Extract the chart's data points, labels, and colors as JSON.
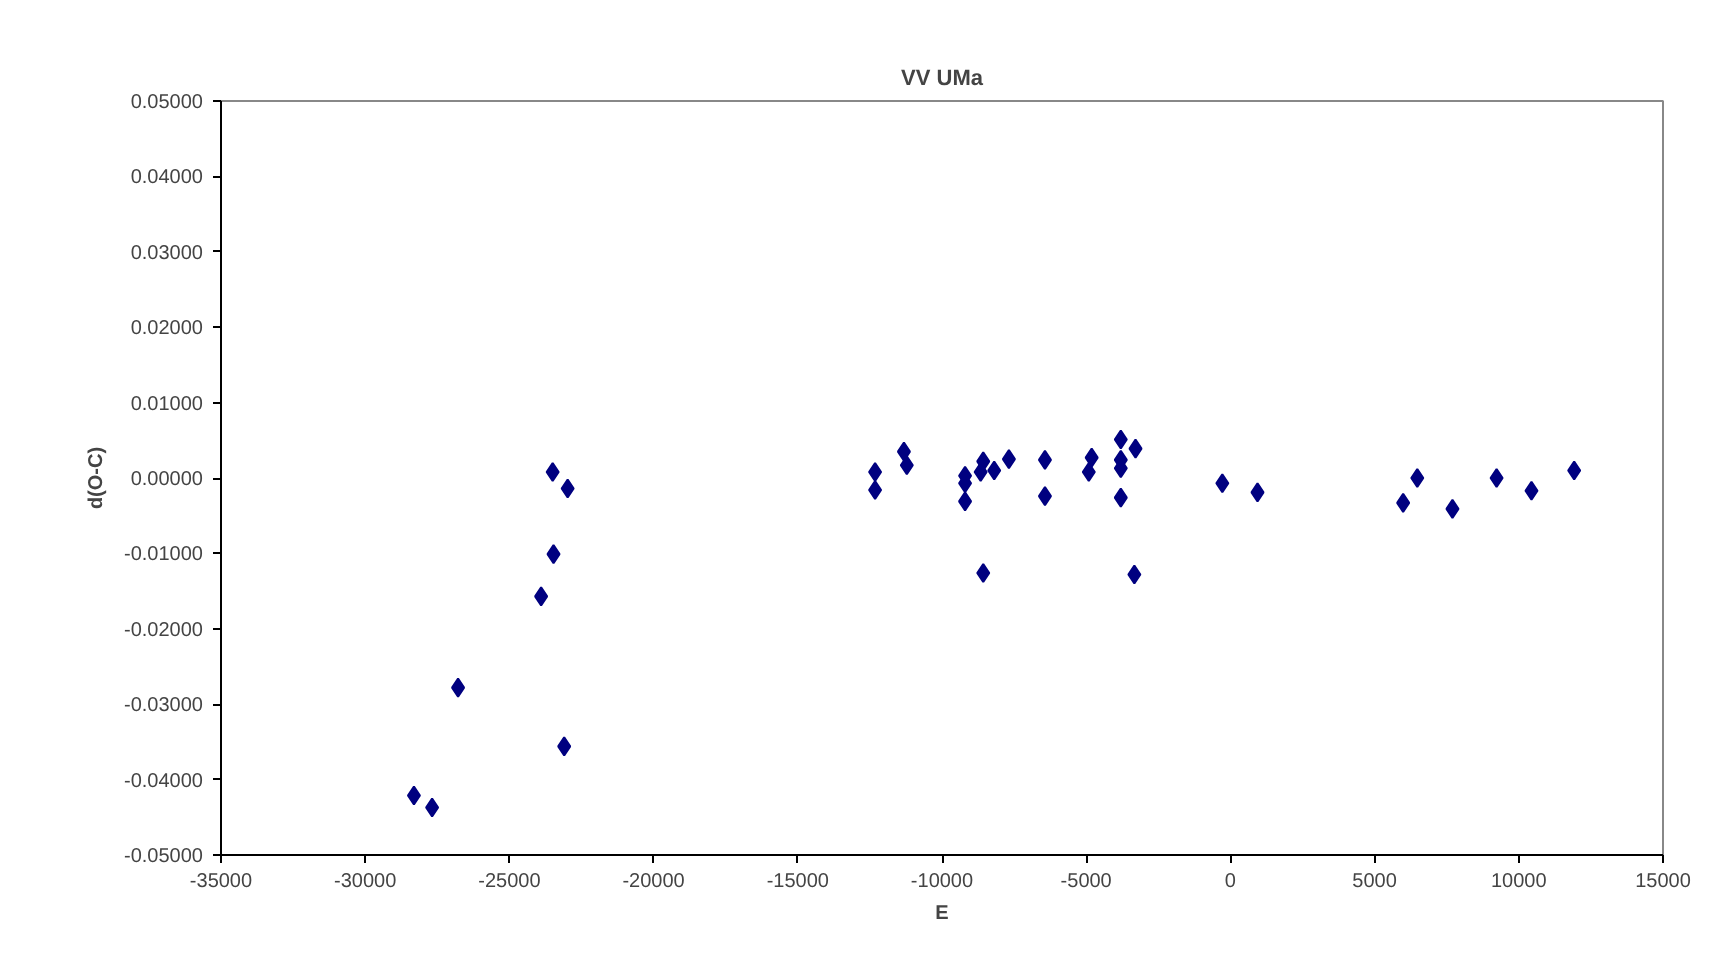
{
  "chart_data": {
    "type": "scatter",
    "title": "VV UMa",
    "xlabel": "E",
    "ylabel": "d(O-C)",
    "x": [
      -23500,
      -22980,
      -23470,
      -23900,
      -26780,
      -23100,
      -28310,
      -27680,
      -12320,
      -12320,
      -11320,
      -11220,
      -9200,
      -9200,
      -9200,
      -8570,
      -8660,
      -8190,
      -7680,
      -8570,
      -6430,
      -6430,
      -4810,
      -4910,
      -3800,
      -3290,
      -3800,
      -3800,
      -3800,
      -3330,
      -280,
      940,
      6480,
      5990,
      7700,
      9230,
      10440,
      11920
    ],
    "series": [
      {
        "color": "#000080",
        "values": [
          0.0008,
          -0.0014,
          -0.0101,
          -0.0157,
          -0.0278,
          -0.0356,
          -0.0421,
          -0.0437,
          0.0008,
          -0.0016,
          0.0035,
          0.0017,
          0.0003,
          -0.0007,
          -0.0031,
          0.0022,
          0.0008,
          0.001,
          0.0025,
          -0.0126,
          0.0024,
          -0.0024,
          0.0027,
          0.0008,
          0.0051,
          0.0039,
          0.0024,
          0.0013,
          -0.0026,
          -0.0128,
          -0.0007,
          -0.0019,
          0.0,
          -0.0033,
          -0.0041,
          0.0,
          -0.0017,
          0.001
        ]
      }
    ],
    "xlim": [
      -35000,
      15000
    ],
    "xticks": [
      -35000,
      -30000,
      -25000,
      -20000,
      -15000,
      -10000,
      -5000,
      0,
      5000,
      10000,
      15000
    ],
    "ylim": [
      -0.05,
      0.05
    ],
    "yticks": [
      {
        "value": -0.05,
        "label": "-0.05000"
      },
      {
        "value": -0.04,
        "label": "-0.04000"
      },
      {
        "value": -0.03,
        "label": "-0.03000"
      },
      {
        "value": -0.02,
        "label": "-0.02000"
      },
      {
        "value": -0.01,
        "label": "-0.01000"
      },
      {
        "value": 0,
        "label": "0.00000"
      },
      {
        "value": 0.01,
        "label": "0.01000"
      },
      {
        "value": 0.02,
        "label": "0.02000"
      },
      {
        "value": 0.03,
        "label": "0.03000"
      },
      {
        "value": 0.04,
        "label": "0.04000"
      },
      {
        "value": 0.05,
        "label": "0.05000"
      }
    ],
    "marker": "diamond",
    "grid": false
  }
}
